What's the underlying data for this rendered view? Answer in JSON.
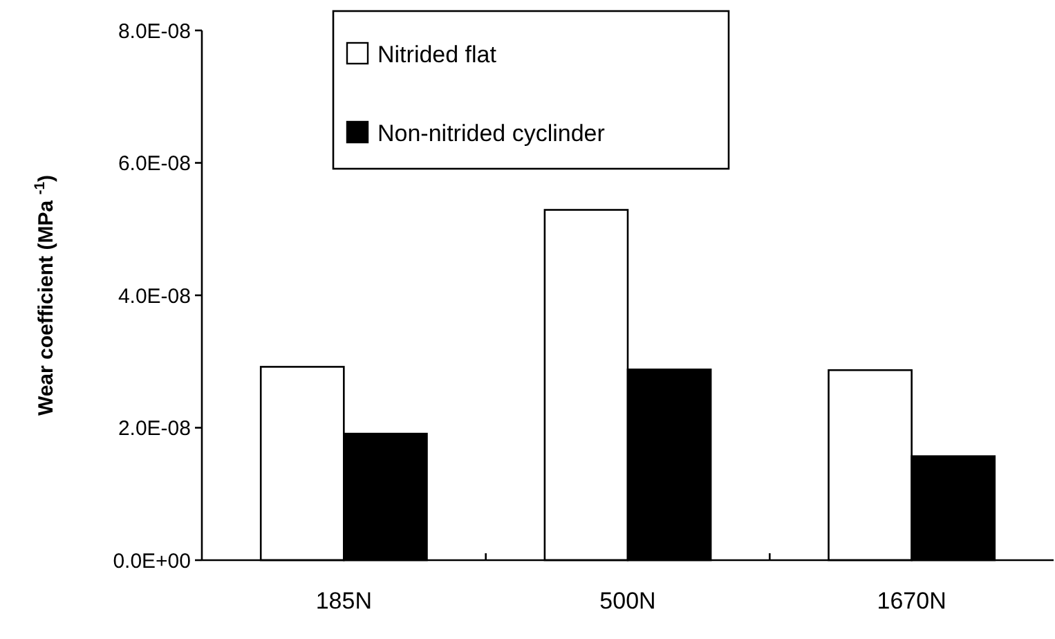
{
  "chart_data": {
    "type": "bar",
    "ylabel": "Wear coefficient (MPa $^{-1}$)",
    "categories": [
      "185N",
      "500N",
      "1670N"
    ],
    "series": [
      {
        "name": "Nitrided flat",
        "color": "#ffffff",
        "values": [
          2.92e-08,
          5.29e-08,
          2.87e-08
        ]
      },
      {
        "name": "Non-nitrided cyclinder",
        "color": "#000000",
        "values": [
          1.91e-08,
          2.88e-08,
          1.57e-08
        ]
      }
    ],
    "ylim": [
      0,
      8e-08
    ],
    "yticks": [
      {
        "value": 0,
        "label": "0.0E+00"
      },
      {
        "value": 2e-08,
        "label": "2.0E-08"
      },
      {
        "value": 4e-08,
        "label": "4.0E-08"
      },
      {
        "value": 6e-08,
        "label": "6.0E-08"
      },
      {
        "value": 8e-08,
        "label": "8.0E-08"
      }
    ],
    "grid": false,
    "legend": "top"
  }
}
